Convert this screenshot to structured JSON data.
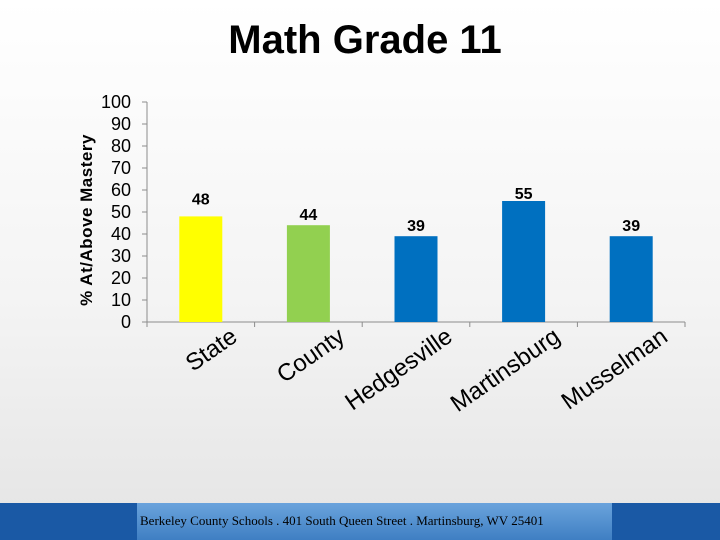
{
  "chart_data": {
    "type": "bar",
    "title": "Math Grade 11",
    "ylabel": "% At/Above Mastery",
    "xlabel": "",
    "ylim": [
      0,
      100
    ],
    "yticks": [
      0,
      10,
      20,
      30,
      40,
      50,
      60,
      70,
      80,
      90,
      100
    ],
    "grid": false,
    "legend": "none",
    "categories": [
      "State",
      "County",
      "Hedgesville",
      "Martinsburg",
      "Musselman"
    ],
    "values": [
      48,
      44,
      39,
      55,
      39
    ],
    "bar_colors": [
      "#ffff00",
      "#92d050",
      "#0070c0",
      "#0070c0",
      "#0070c0"
    ]
  },
  "footer": {
    "text": "Berkeley County Schools . 401 South Queen Street . Martinsburg, WV  25401",
    "color": "#1a59a5"
  }
}
